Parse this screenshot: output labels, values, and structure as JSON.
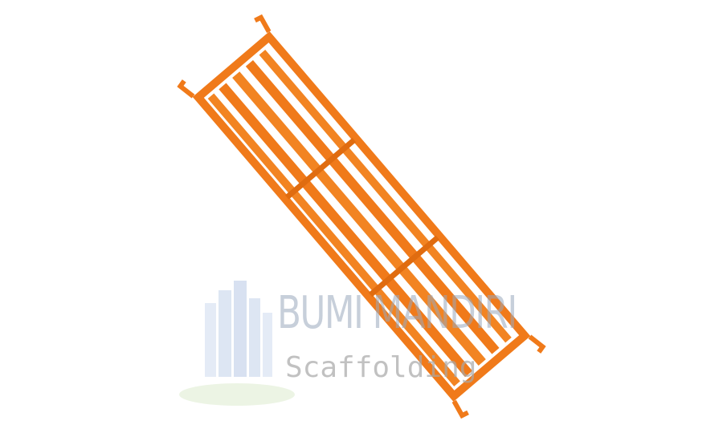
{
  "watermark": {
    "brand": "BUMI MANDIRI",
    "tagline": "Scaffolding",
    "logo_icon": "building-skyline-icon"
  },
  "product": {
    "icon": "scaffold-plank-icon",
    "color": "#f07a1a"
  }
}
